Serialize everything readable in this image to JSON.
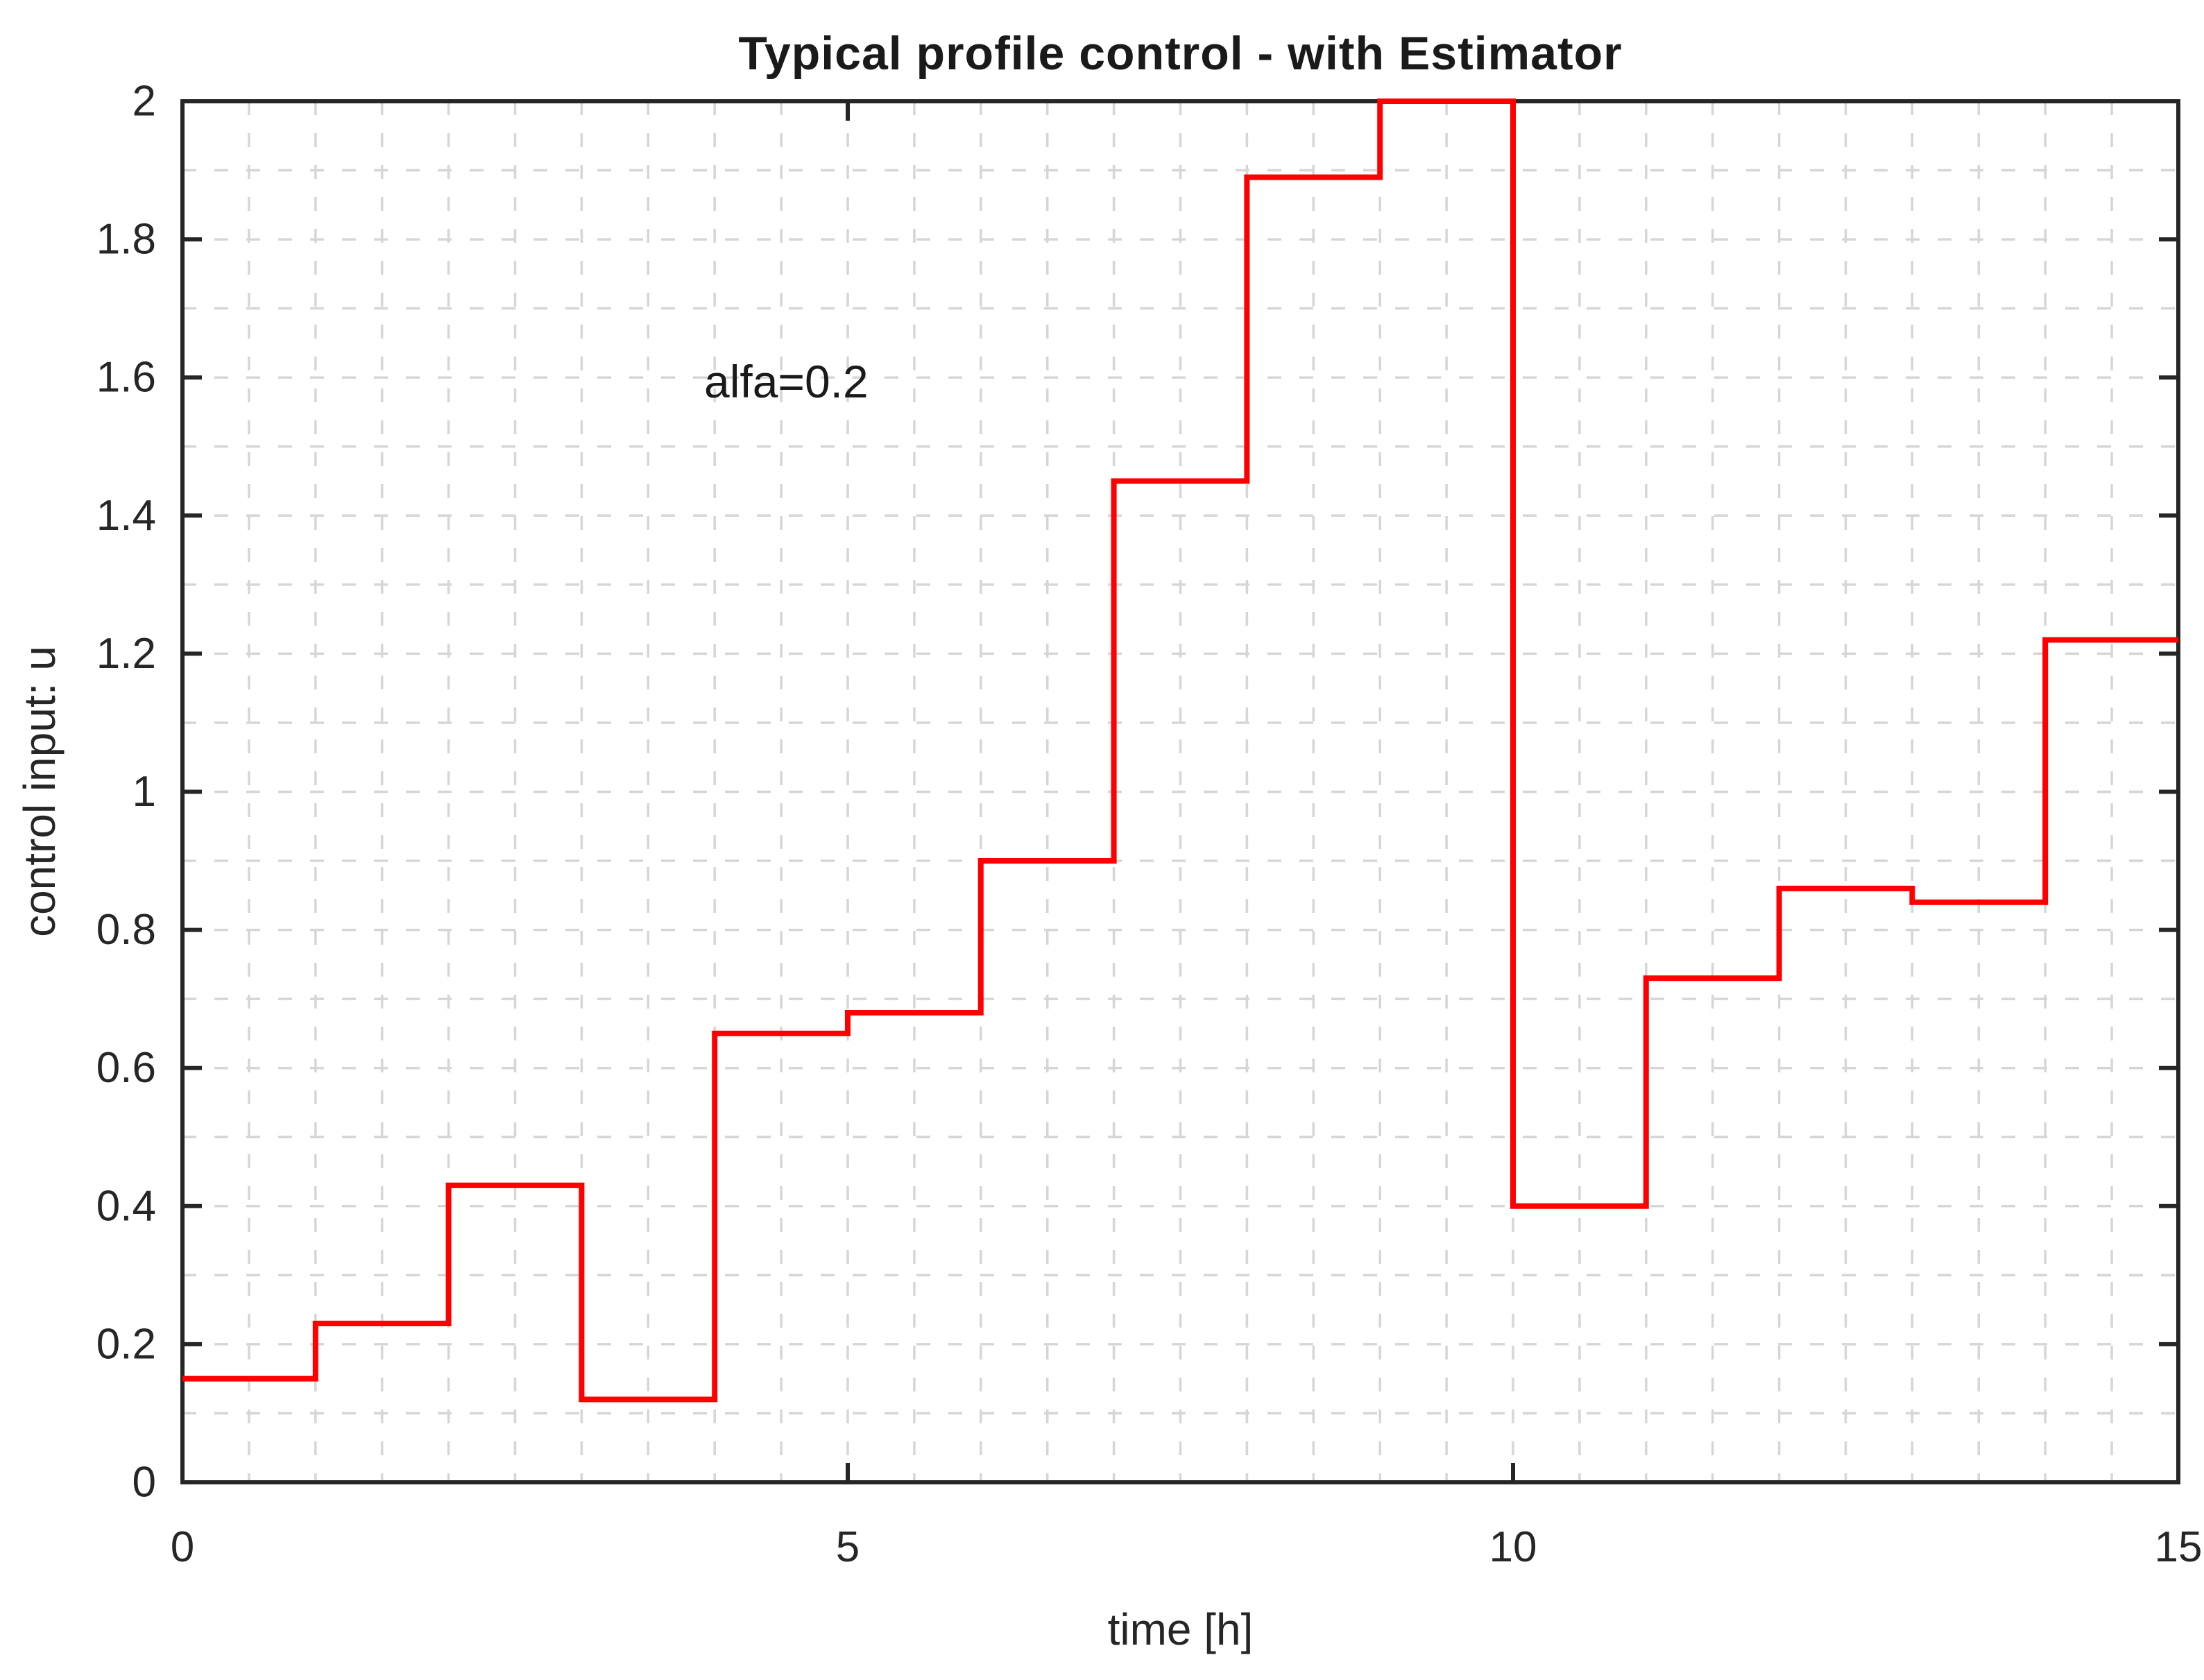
{
  "chart_data": {
    "type": "line",
    "step_mode": "post",
    "title": "Typical profile control - with Estimator",
    "xlabel": "time [h]",
    "ylabel": "control input: u",
    "annotation": {
      "text": "alfa=0.2",
      "x": 3.93,
      "y": 1.59
    },
    "x": [
      0,
      1,
      2,
      3,
      4,
      5,
      6,
      7,
      8,
      9,
      10,
      11,
      12,
      13,
      14,
      15
    ],
    "series": [
      {
        "name": "control input u",
        "values": [
          0.15,
          0.23,
          0.43,
          0.12,
          0.65,
          0.68,
          0.9,
          1.45,
          1.89,
          2.0,
          0.4,
          0.73,
          0.86,
          0.84,
          1.22
        ]
      }
    ],
    "xlim": [
      0,
      15
    ],
    "ylim": [
      0,
      2
    ],
    "xticks": {
      "values": [
        0,
        5,
        10,
        15
      ],
      "labels": [
        "0",
        "5",
        "10",
        "15"
      ]
    },
    "yticks": {
      "values": [
        0,
        0.2,
        0.4,
        0.6,
        0.8,
        1,
        1.2,
        1.4,
        1.6,
        1.8,
        2
      ],
      "labels": [
        "0",
        "0.2",
        "0.4",
        "0.6",
        "0.8",
        "1",
        "1.2",
        "1.4",
        "1.6",
        "1.8",
        "2"
      ]
    },
    "minor_grid_spacing_x": 0.5,
    "minor_grid_spacing_y": 0.1,
    "grid": "on",
    "legend": "none",
    "line_color": "#ff0000",
    "axis_color": "#262626",
    "grid_color": "#d6d6d6",
    "background_color": "#ffffff"
  }
}
